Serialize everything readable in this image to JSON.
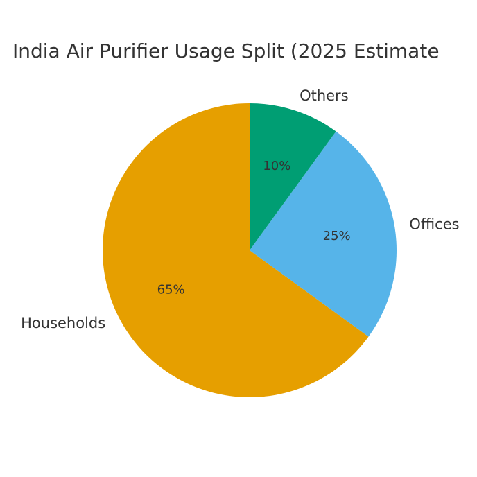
{
  "chart_data": {
    "type": "pie",
    "title": "India Air Purifier Usage Split (2025 Estimate",
    "categories": [
      "Households",
      "Offices",
      "Others"
    ],
    "values": [
      65,
      25,
      10
    ],
    "value_labels": [
      "65%",
      "25%",
      "10%"
    ],
    "colors": [
      "#E69F00",
      "#56B4E9",
      "#009E73"
    ]
  }
}
